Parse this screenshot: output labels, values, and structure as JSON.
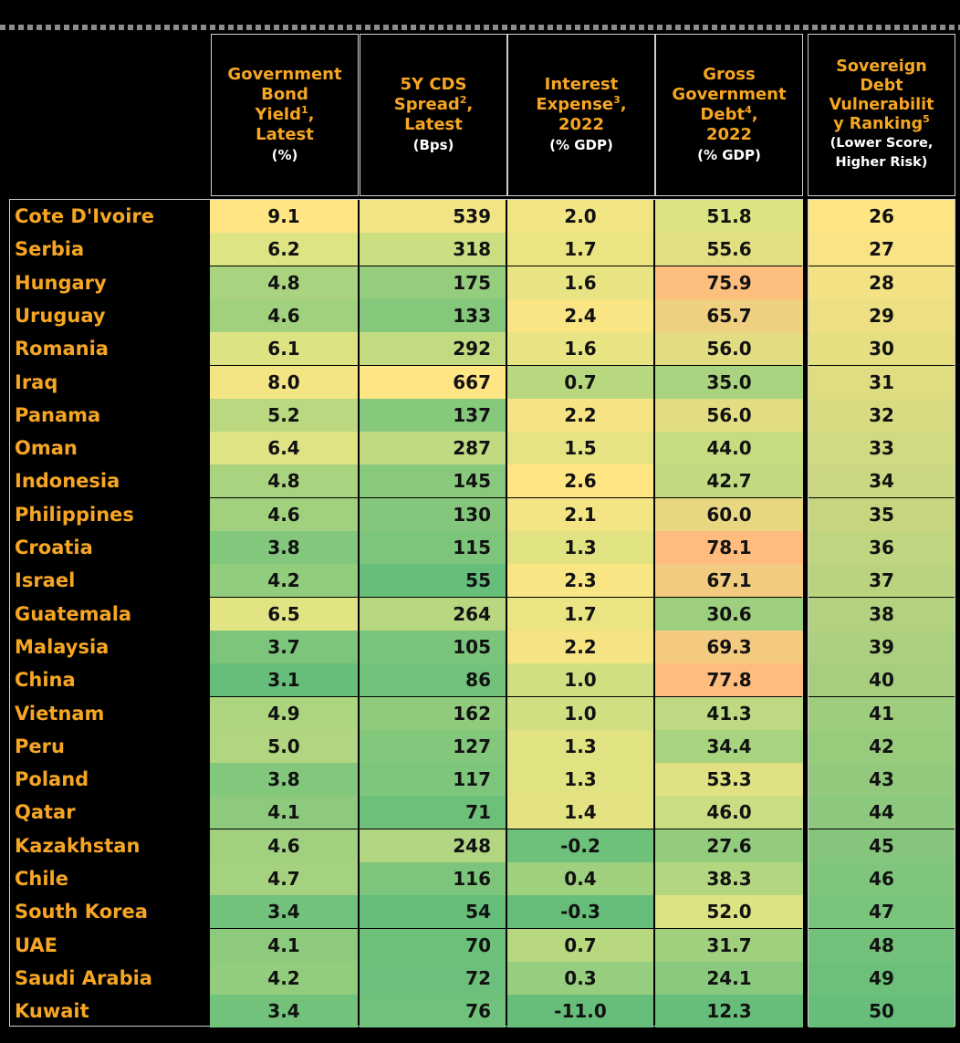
{
  "headers": [
    {
      "lines": [
        "Government",
        "Bond",
        "Yield"
      ],
      "sup": "1",
      "after_sup": ",",
      "tail": [
        "Latest"
      ],
      "unit": "(%)"
    },
    {
      "lines": [
        "5Y CDS",
        "Spread"
      ],
      "sup": "2",
      "after_sup": ",",
      "tail": [
        "Latest"
      ],
      "unit": "(Bps)"
    },
    {
      "lines": [
        "Interest",
        "Expense"
      ],
      "sup": "3",
      "after_sup": ",",
      "tail": [
        "2022"
      ],
      "unit": "(% GDP)"
    },
    {
      "lines": [
        "Gross",
        "Government",
        "Debt"
      ],
      "sup": "4",
      "after_sup": ",",
      "tail": [
        "2022"
      ],
      "unit": "(% GDP)"
    },
    {
      "lines": [
        "Sovereign",
        "Debt",
        "Vulnerabilit",
        "y Ranking"
      ],
      "sup": "5",
      "after_sup": "",
      "tail": [],
      "unit_lines": [
        "(Lower Score,",
        "Higher Risk)"
      ]
    }
  ],
  "chart_data": {
    "type": "table",
    "columns": [
      "Government Bond Yield, Latest (%)",
      "5Y CDS Spread, Latest (Bps)",
      "Interest Expense, 2022 (% GDP)",
      "Gross Government Debt, 2022 (% GDP)",
      "Sovereign Debt Vulnerability Ranking (Lower Score, Higher Risk)"
    ],
    "rows": [
      {
        "country": "Cote D'Ivoire",
        "values": [
          "9.1",
          "539",
          "2.0",
          "51.8",
          "26"
        ]
      },
      {
        "country": "Serbia",
        "values": [
          "6.2",
          "318",
          "1.7",
          "55.6",
          "27"
        ]
      },
      {
        "country": "Hungary",
        "values": [
          "4.8",
          "175",
          "1.6",
          "75.9",
          "28"
        ]
      },
      {
        "country": "Uruguay",
        "values": [
          "4.6",
          "133",
          "2.4",
          "65.7",
          "29"
        ]
      },
      {
        "country": "Romania",
        "values": [
          "6.1",
          "292",
          "1.6",
          "56.0",
          "30"
        ]
      },
      {
        "country": "Iraq",
        "values": [
          "8.0",
          "667",
          "0.7",
          "35.0",
          "31"
        ]
      },
      {
        "country": "Panama",
        "values": [
          "5.2",
          "137",
          "2.2",
          "56.0",
          "32"
        ]
      },
      {
        "country": "Oman",
        "values": [
          "6.4",
          "287",
          "1.5",
          "44.0",
          "33"
        ]
      },
      {
        "country": "Indonesia",
        "values": [
          "4.8",
          "145",
          "2.6",
          "42.7",
          "34"
        ]
      },
      {
        "country": "Philippines",
        "values": [
          "4.6",
          "130",
          "2.1",
          "60.0",
          "35"
        ]
      },
      {
        "country": "Croatia",
        "values": [
          "3.8",
          "115",
          "1.3",
          "78.1",
          "36"
        ]
      },
      {
        "country": "Israel",
        "values": [
          "4.2",
          "55",
          "2.3",
          "67.1",
          "37"
        ]
      },
      {
        "country": "Guatemala",
        "values": [
          "6.5",
          "264",
          "1.7",
          "30.6",
          "38"
        ]
      },
      {
        "country": "Malaysia",
        "values": [
          "3.7",
          "105",
          "2.2",
          "69.3",
          "39"
        ]
      },
      {
        "country": "China",
        "values": [
          "3.1",
          "86",
          "1.0",
          "77.8",
          "40"
        ]
      },
      {
        "country": "Vietnam",
        "values": [
          "4.9",
          "162",
          "1.0",
          "41.3",
          "41"
        ]
      },
      {
        "country": "Peru",
        "values": [
          "5.0",
          "127",
          "1.3",
          "34.4",
          "42"
        ]
      },
      {
        "country": "Poland",
        "values": [
          "3.8",
          "117",
          "1.3",
          "53.3",
          "43"
        ]
      },
      {
        "country": "Qatar",
        "values": [
          "4.1",
          "71",
          "1.4",
          "46.0",
          "44"
        ]
      },
      {
        "country": "Kazakhstan",
        "values": [
          "4.6",
          "248",
          "-0.2",
          "27.6",
          "45"
        ]
      },
      {
        "country": "Chile",
        "values": [
          "4.7",
          "116",
          "0.4",
          "38.3",
          "46"
        ]
      },
      {
        "country": "South Korea",
        "values": [
          "3.4",
          "54",
          "-0.3",
          "52.0",
          "47"
        ]
      },
      {
        "country": "UAE",
        "values": [
          "4.1",
          "70",
          "0.7",
          "31.7",
          "48"
        ]
      },
      {
        "country": "Saudi Arabia",
        "values": [
          "4.2",
          "72",
          "0.3",
          "24.1",
          "49"
        ]
      },
      {
        "country": "Kuwait",
        "values": [
          "3.4",
          "76",
          "-11.0",
          "12.3",
          "50"
        ]
      }
    ]
  },
  "colors": {
    "background": "#000000",
    "header_text": "#f6a623",
    "country_text": "#f6a623",
    "cell_text": "#111111",
    "high": "#ffe584",
    "mid": "#dde383",
    "low": "#66be7a",
    "debt_high": "#ffbc7e"
  },
  "color_scale": {
    "yield": [
      3.1,
      9.1
    ],
    "cds": [
      54,
      667
    ],
    "interest": [
      -0.3,
      2.6
    ],
    "debt_high": [
      12.3,
      52.0,
      78.1
    ],
    "rank": [
      26,
      50
    ]
  }
}
